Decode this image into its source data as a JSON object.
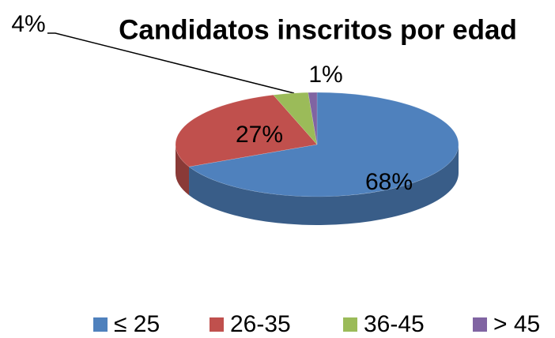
{
  "chart_data": {
    "type": "pie",
    "title": "Candidatos inscritos por edad",
    "categories": [
      "≤ 25",
      "26-35",
      "36-45",
      "> 45"
    ],
    "values": [
      68,
      27,
      4,
      1
    ],
    "value_labels": [
      "68%",
      "27%",
      "4%",
      "1%"
    ],
    "colors": [
      "#4f81bd",
      "#c0504d",
      "#9bbb59",
      "#8064a2"
    ],
    "legend": "bottom"
  }
}
